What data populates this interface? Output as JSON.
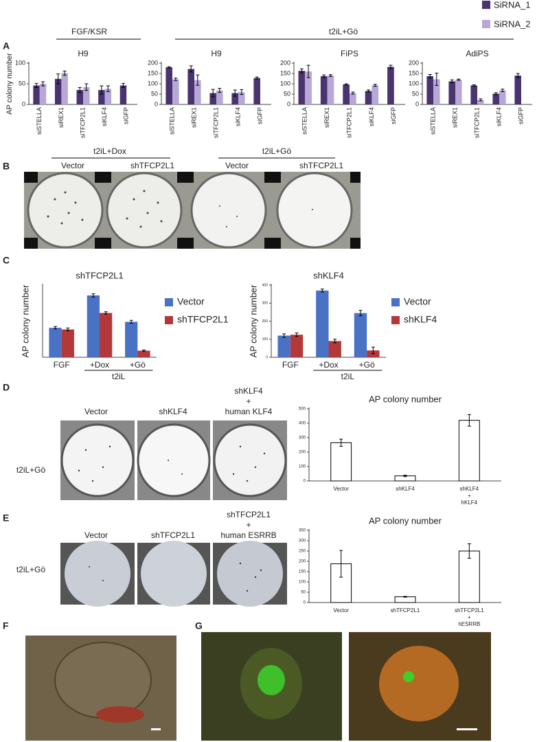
{
  "figure": {
    "panel_labels": [
      "A",
      "B",
      "C",
      "D",
      "E",
      "F",
      "G"
    ],
    "a_conditions": [
      "FGF/KSR",
      "t2iL+Gö"
    ],
    "b_conditions": [
      "t2iL+Dox",
      "t2iL+Gö"
    ],
    "b_columns": [
      "Vector",
      "shTFCP2L1",
      "Vector",
      "shTFCP2L1"
    ],
    "d_row": "t2iL+Gö",
    "d_columns": [
      "Vector",
      "shKLF4",
      "shKLF4\n+\nhuman KLF4"
    ],
    "e_row": "t2iL+Gö",
    "e_columns": [
      "Vector",
      "shTFCP2L1",
      "shTFCP2L1\n+\nhuman ESRRB"
    ]
  },
  "chart_data": [
    {
      "type": "bar",
      "title": "H9",
      "ylabel": "AP colony number",
      "categories": [
        "siSTELLA",
        "siREX1",
        "siTFCP2L1",
        "siKLF4",
        "siGFP"
      ],
      "series": [
        {
          "name": "SiRNA_1",
          "color": "#4a3470",
          "values": [
            46,
            62,
            35,
            35,
            46
          ],
          "errors": [
            5,
            12,
            6,
            10,
            5
          ]
        },
        {
          "name": "SiRNA_2",
          "color": "#b8a8d8",
          "values": [
            50,
            76,
            42,
            38,
            null
          ],
          "errors": [
            5,
            5,
            8,
            7,
            null
          ]
        }
      ],
      "ylim": [
        0,
        100
      ],
      "yticks": [
        0,
        50,
        100
      ]
    },
    {
      "type": "bar",
      "title": "H9",
      "categories": [
        "siSTELLA",
        "siREX1",
        "siTFCP2L1",
        "siKLF4",
        "siGFP"
      ],
      "series": [
        {
          "color": "#4a3470",
          "values": [
            180,
            172,
            55,
            55,
            128
          ],
          "errors": [
            3,
            15,
            18,
            15,
            5
          ]
        },
        {
          "color": "#b8a8d8",
          "values": [
            122,
            118,
            68,
            60,
            null
          ],
          "errors": [
            6,
            25,
            10,
            12,
            null
          ]
        }
      ],
      "ylim": [
        0,
        200
      ],
      "yticks": [
        0,
        50,
        100,
        150,
        200
      ]
    },
    {
      "type": "bar",
      "title": "FiPS",
      "categories": [
        "siSTELLA",
        "siREX1",
        "siTFCP2L1",
        "siKLF4",
        "siGFP"
      ],
      "series": [
        {
          "color": "#4a3470",
          "values": [
            163,
            137,
            97,
            65,
            182
          ],
          "errors": [
            10,
            6,
            3,
            5,
            8
          ]
        },
        {
          "color": "#b8a8d8",
          "values": [
            160,
            140,
            55,
            93,
            null
          ],
          "errors": [
            30,
            4,
            5,
            5,
            null
          ]
        }
      ],
      "ylim": [
        0,
        200
      ],
      "yticks": [
        0,
        50,
        100,
        150,
        200
      ]
    },
    {
      "type": "bar",
      "title": "AdiPS",
      "categories": [
        "siSTELLA",
        "siREX1",
        "siTFCP2L1",
        "siKLF4",
        "siGFP"
      ],
      "series": [
        {
          "color": "#4a3470",
          "values": [
            137,
            112,
            92,
            52,
            140
          ],
          "errors": [
            8,
            7,
            3,
            5,
            10
          ]
        },
        {
          "color": "#b8a8d8",
          "values": [
            122,
            120,
            22,
            68,
            null
          ],
          "errors": [
            30,
            3,
            5,
            6,
            null
          ]
        }
      ],
      "ylim": [
        0,
        200
      ],
      "yticks": [
        0,
        50,
        100,
        150,
        200
      ]
    },
    {
      "type": "bar",
      "title": "shTFCP2L1",
      "ylabel": "AP colony number",
      "group_label": "t2iL",
      "categories": [
        "FGF",
        "+Dox",
        "+Gö"
      ],
      "series": [
        {
          "name": "Vector",
          "color": "#4a72c4",
          "values": [
            143,
            300,
            172
          ],
          "errors": [
            6,
            8,
            7
          ]
        },
        {
          "name": "shTFCP2L1",
          "color": "#b3383a",
          "values": [
            135,
            215,
            32
          ],
          "errors": [
            7,
            6,
            3
          ]
        }
      ],
      "ylim": [
        0,
        350
      ]
    },
    {
      "type": "bar",
      "title": "shKLF4",
      "ylabel": "AP colony number",
      "group_label": "t2iL",
      "categories": [
        "FGF",
        "+Dox",
        "+Gö"
      ],
      "series": [
        {
          "name": "Vector",
          "color": "#4a72c4",
          "values": [
            120,
            370,
            245
          ],
          "errors": [
            10,
            8,
            15
          ]
        },
        {
          "name": "shKLF4",
          "color": "#b3383a",
          "values": [
            125,
            90,
            38
          ],
          "errors": [
            10,
            10,
            18
          ]
        }
      ],
      "ylim": [
        0,
        400
      ],
      "yticks": [
        0,
        100,
        200,
        300,
        400
      ]
    },
    {
      "type": "bar",
      "title": "AP colony number",
      "categories": [
        "Vector",
        "shKLF4",
        "shKLF4\n+\nhKLF4"
      ],
      "series": [
        {
          "color": "#ffffff",
          "values": [
            265,
            35,
            420
          ],
          "errors": [
            25,
            5,
            40
          ]
        }
      ],
      "ylim": [
        0,
        500
      ],
      "yticks": [
        0,
        100,
        200,
        300,
        400,
        500
      ]
    },
    {
      "type": "bar",
      "title": "AP colony number",
      "categories": [
        "Vector",
        "shTFCP2L1",
        "shTFCP2L1\n+\nhESRRB"
      ],
      "series": [
        {
          "color": "#ffffff",
          "values": [
            188,
            28,
            250
          ],
          "errors": [
            65,
            2,
            35
          ]
        }
      ],
      "ylim": [
        0,
        350
      ],
      "yticks": [
        0,
        50,
        100,
        150,
        200,
        250,
        300,
        350
      ]
    }
  ]
}
